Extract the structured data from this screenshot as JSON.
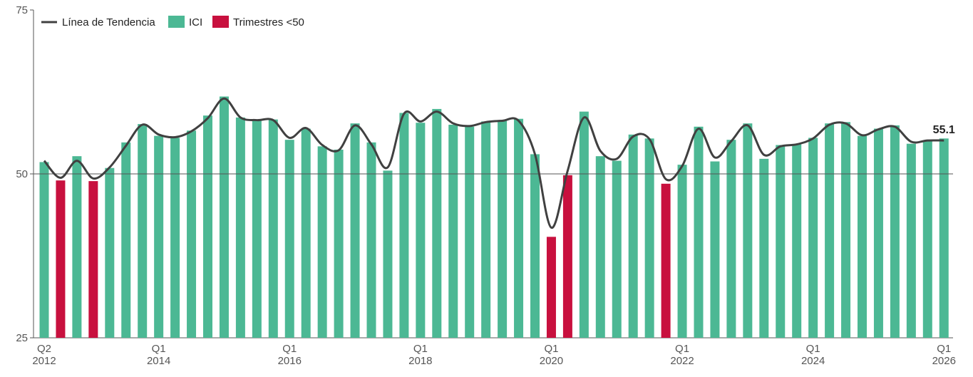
{
  "chart_data": {
    "type": "bar",
    "yticks": [
      25,
      50,
      75
    ],
    "ylim": [
      25,
      75
    ],
    "grid": false,
    "legend": {
      "placement": "top-left",
      "entries": [
        {
          "label": "Línea de Tendencia",
          "kind": "line",
          "color": "#404040"
        },
        {
          "label": "ICI",
          "kind": "bar",
          "color": "#4cb894"
        },
        {
          "label": "Trimestres <50",
          "kind": "bar",
          "color": "#c8103e"
        }
      ]
    },
    "x_tick_labels": [
      {
        "index": 0,
        "quarter": "Q2",
        "year": "2012"
      },
      {
        "index": 7,
        "quarter": "Q1",
        "year": "2014"
      },
      {
        "index": 15,
        "quarter": "Q1",
        "year": "2016"
      },
      {
        "index": 23,
        "quarter": "Q1",
        "year": "2018"
      },
      {
        "index": 31,
        "quarter": "Q1",
        "year": "2020"
      },
      {
        "index": 39,
        "quarter": "Q1",
        "year": "2022"
      },
      {
        "index": 47,
        "quarter": "Q1",
        "year": "2024"
      },
      {
        "index": 55,
        "quarter": "Q1",
        "year": "2026"
      }
    ],
    "series": [
      {
        "name": "ICI",
        "values": [
          51.8,
          49.0,
          52.7,
          48.9,
          50.9,
          54.8,
          57.6,
          55.8,
          55.5,
          56.6,
          58.9,
          61.8,
          58.6,
          58.2,
          58.3,
          55.2,
          56.9,
          54.2,
          53.7,
          57.7,
          54.8,
          50.5,
          59.3,
          57.8,
          59.9,
          57.5,
          57.2,
          58.0,
          58.1,
          58.4,
          53.0,
          40.4,
          49.8,
          59.5,
          52.7,
          52.0,
          56.0,
          55.4,
          48.5,
          51.4,
          57.2,
          51.9,
          55.2,
          57.7,
          52.3,
          54.4,
          54.5,
          55.5,
          57.7,
          57.9,
          55.8,
          56.9,
          57.4,
          54.6,
          55.1,
          55.4
        ]
      },
      {
        "name": "Línea de Tendencia",
        "values": [
          52.0,
          49.4,
          52.0,
          49.3,
          51.0,
          54.3,
          57.5,
          56.0,
          55.6,
          56.5,
          58.5,
          61.5,
          58.6,
          58.2,
          58.2,
          55.5,
          57.0,
          54.4,
          53.6,
          57.4,
          54.5,
          51.0,
          59.2,
          58.0,
          59.5,
          57.7,
          57.3,
          57.9,
          58.1,
          58.1,
          53.0,
          41.8,
          50.5,
          58.6,
          53.5,
          52.3,
          55.7,
          55.3,
          49.2,
          51.2,
          56.9,
          52.5,
          55.0,
          57.4,
          52.9,
          54.2,
          54.5,
          55.4,
          57.5,
          57.7,
          55.9,
          56.8,
          57.2,
          54.9,
          55.1,
          55.1
        ]
      }
    ],
    "last_value_label": "55.1"
  }
}
